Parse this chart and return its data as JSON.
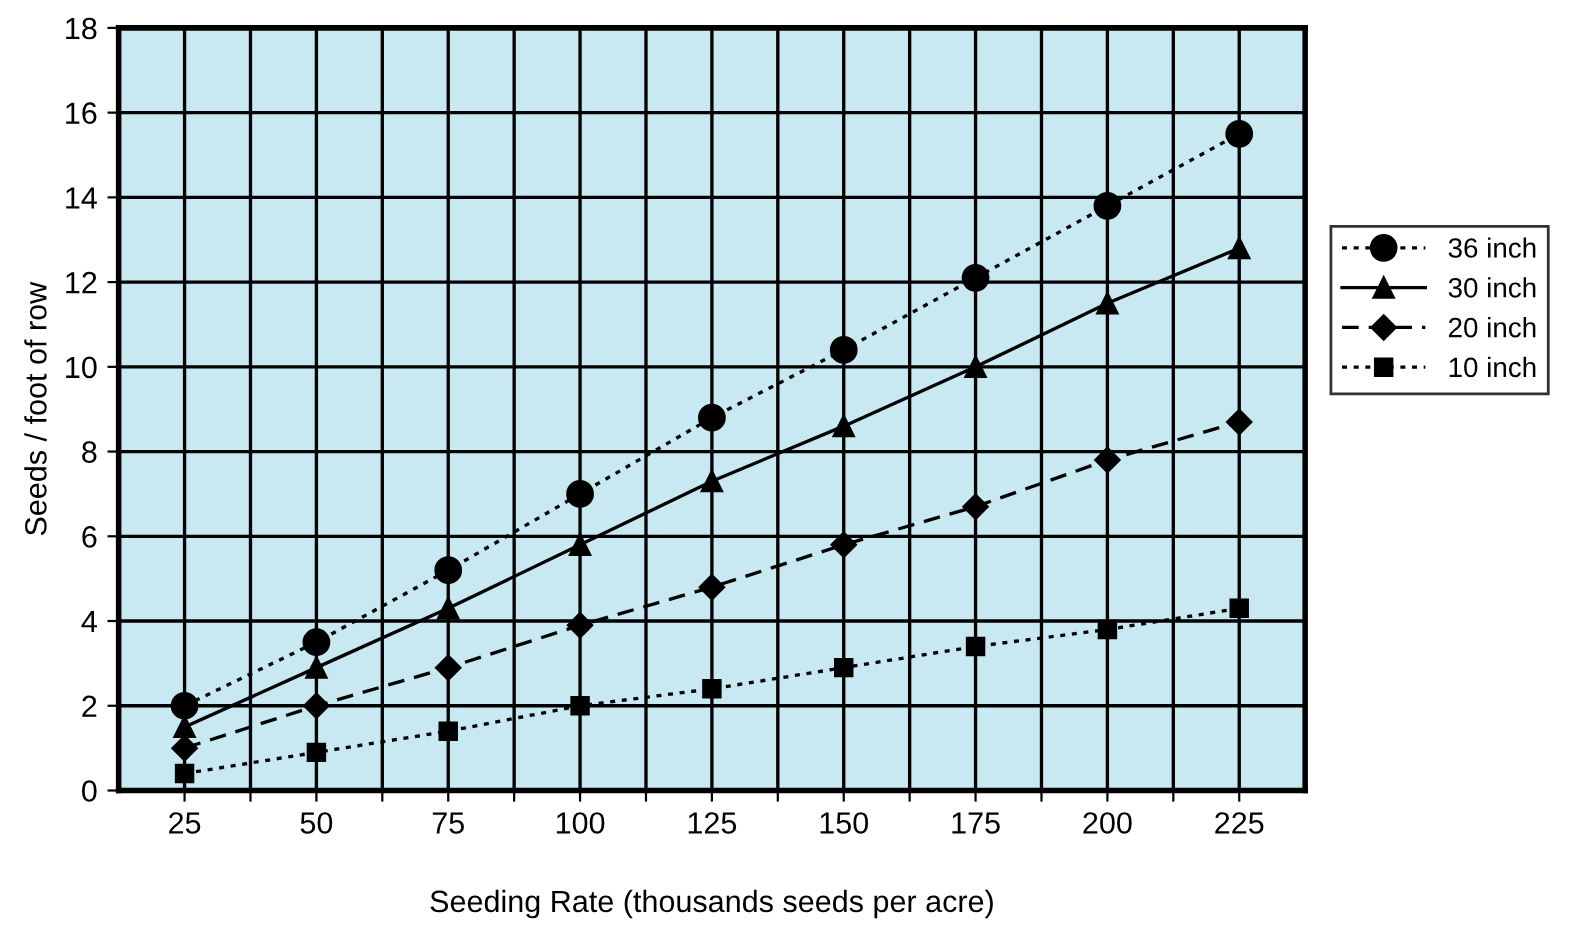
{
  "chart_data": {
    "type": "line",
    "xlabel": "Seeding Rate (thousands seeds per acre)",
    "ylabel": "Seeds / foot of row",
    "x": [
      25,
      50,
      75,
      100,
      125,
      150,
      175,
      200,
      225
    ],
    "series": [
      {
        "name": "36 inch",
        "color": "#000000",
        "marker": "circle",
        "line_style": "dotted",
        "values": [
          2.0,
          3.5,
          5.2,
          7.0,
          8.8,
          10.4,
          12.1,
          13.8,
          15.5
        ]
      },
      {
        "name": "30 inch",
        "color": "#000000",
        "marker": "triangle",
        "line_style": "solid",
        "values": [
          1.5,
          2.9,
          4.3,
          5.8,
          7.3,
          8.6,
          10.0,
          11.5,
          12.8
        ]
      },
      {
        "name": "20 inch",
        "color": "#000000",
        "marker": "diamond",
        "line_style": "dashed",
        "values": [
          1.0,
          2.0,
          2.9,
          3.9,
          4.8,
          5.8,
          6.7,
          7.8,
          8.7
        ]
      },
      {
        "name": "10 inch",
        "color": "#000000",
        "marker": "square",
        "line_style": "dotted",
        "values": [
          0.4,
          0.9,
          1.4,
          2.0,
          2.4,
          2.9,
          3.4,
          3.8,
          4.3
        ]
      }
    ],
    "xlim": [
      12.5,
      237.5
    ],
    "xticks": [
      25,
      {
        "value": 37.5,
        "label": null
      },
      50,
      {
        "value": 62.5,
        "label": null
      },
      75,
      {
        "value": 87.5,
        "label": null
      },
      100,
      {
        "value": 112.5,
        "label": null
      },
      125,
      {
        "value": 137.5,
        "label": null
      },
      150,
      {
        "value": 162.5,
        "label": null
      },
      175,
      {
        "value": 187.5,
        "label": null
      },
      200,
      {
        "value": 212.5,
        "label": null
      },
      225
    ],
    "ylim": [
      0,
      18
    ],
    "yticks": [
      0,
      2,
      4,
      6,
      8,
      10,
      12,
      14,
      16,
      18
    ],
    "grid": true,
    "legend": "right"
  }
}
